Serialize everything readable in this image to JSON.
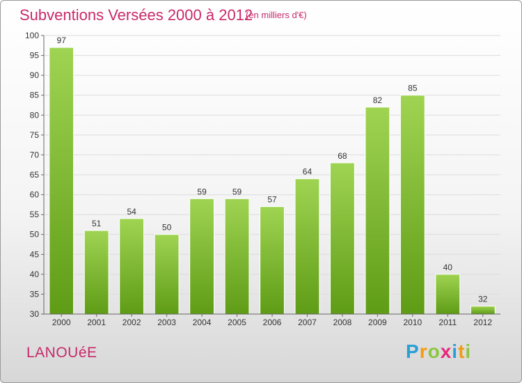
{
  "header": {
    "title": "Subventions Versées 2000 à 2012",
    "subtitle": "(en milliers d'€)"
  },
  "footer": {
    "commune": "LANOUéE",
    "logo_letters": [
      "P",
      "r",
      "o",
      "x",
      "i",
      "t",
      "i"
    ],
    "logo_colors": [
      "#2a9fd6",
      "#f39c12",
      "#8cc63f",
      "#e8287a",
      "#2a9fd6",
      "#f39c12",
      "#8cc63f"
    ]
  },
  "chart_data": {
    "type": "bar",
    "title": "Subventions Versées 2000 à 2012",
    "subtitle": "(en milliers d'€)",
    "categories": [
      "2000",
      "2001",
      "2002",
      "2003",
      "2004",
      "2005",
      "2006",
      "2007",
      "2008",
      "2009",
      "2010",
      "2011",
      "2012"
    ],
    "values": [
      97,
      51,
      54,
      50,
      59,
      59,
      57,
      64,
      68,
      82,
      85,
      40,
      32
    ],
    "ylim": [
      30,
      100
    ],
    "yticks": [
      30,
      35,
      40,
      45,
      50,
      55,
      60,
      65,
      70,
      75,
      80,
      85,
      90,
      95,
      100
    ],
    "grid": true,
    "bar_color": "#8cc63f",
    "bar_color_dark": "#5f9c16"
  }
}
